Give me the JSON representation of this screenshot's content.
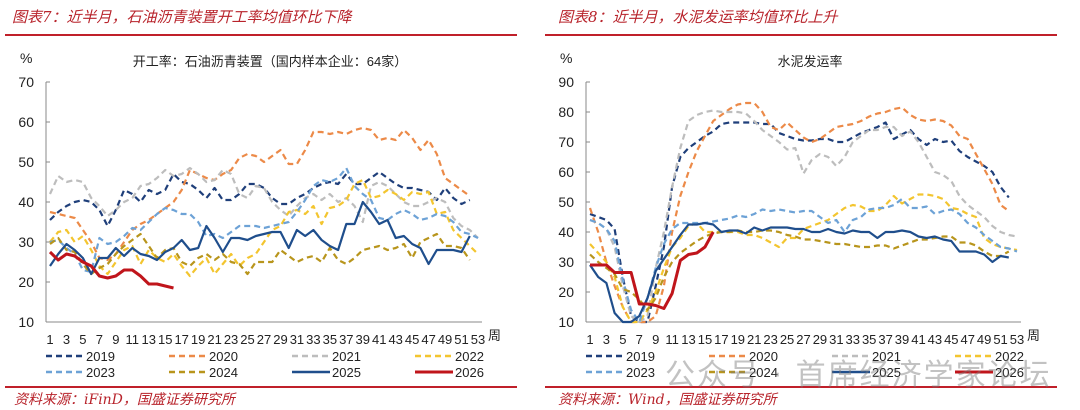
{
  "panels": [
    {
      "figure_title": "图表7：近半月，石油沥青装置开工率均值环比下降",
      "source": "资料来源：iFinD，国盛证券研究所"
    },
    {
      "figure_title": "图表8：近半月，水泥发运率均值环比上升",
      "source": "资料来源：Wind，国盛证券研究所"
    }
  ],
  "watermark": "公众号 · 首席经济学家论坛",
  "colors": {
    "accent": "#c0202a"
  },
  "chart_data": [
    {
      "type": "line",
      "title": "开工率：石油沥青装置（国内样本企业：64家）",
      "ylabel": "%",
      "xlabel": "周",
      "ylim": [
        10,
        70
      ],
      "yticks": [
        10,
        20,
        30,
        40,
        50,
        60,
        70
      ],
      "xlim": [
        1,
        53
      ],
      "xticks": [
        1,
        3,
        5,
        7,
        9,
        11,
        13,
        15,
        17,
        19,
        21,
        23,
        25,
        27,
        29,
        31,
        33,
        35,
        37,
        39,
        41,
        43,
        45,
        47,
        49,
        51,
        53
      ],
      "grid": false,
      "legend": "bottom",
      "series": [
        {
          "name": "2019",
          "color": "#1f3f7a",
          "dash": true,
          "values": [
            35.5,
            37.5,
            39,
            40,
            40.5,
            40,
            38,
            34,
            38,
            43,
            42,
            40,
            43,
            42,
            43,
            47,
            45,
            44.5,
            43,
            41,
            43.5,
            40.5,
            40.5,
            42,
            44.5,
            44.5,
            43.5,
            41,
            39.5,
            39.5,
            41,
            42,
            43.5,
            44.5,
            45,
            44.5,
            47,
            44.5,
            44.5,
            46,
            47.5,
            46,
            44.5,
            43.5,
            43.5,
            43,
            42.5,
            40.5,
            43.5,
            41,
            39.5,
            40.5
          ]
        },
        {
          "name": "2020",
          "color": "#ec8a48",
          "dash": true,
          "values": [
            37.5,
            37,
            36.5,
            36,
            33,
            30,
            26,
            25.5,
            27,
            30,
            33,
            34.5,
            35.5,
            37,
            38.5,
            40,
            43,
            48,
            47,
            46,
            45.5,
            47,
            48,
            51,
            52,
            51.5,
            50,
            51.5,
            53,
            49.5,
            49.5,
            53,
            57.5,
            57.5,
            57,
            57.5,
            57,
            58,
            58.5,
            58,
            55.5,
            56,
            55.5,
            58,
            56,
            53,
            55.5,
            52,
            46,
            44.5,
            43,
            41.5
          ]
        },
        {
          "name": "2021",
          "color": "#bdbdbd",
          "dash": true,
          "values": [
            42,
            46.5,
            45,
            45.5,
            45,
            41,
            39,
            36.5,
            38,
            40,
            41,
            44,
            44.5,
            46,
            48,
            46.5,
            47,
            48.5,
            47,
            45,
            45.5,
            48,
            47,
            42,
            41,
            44,
            43.5,
            40,
            38,
            36.5,
            39,
            41,
            42,
            40.5,
            42,
            40,
            41,
            39,
            35,
            44,
            45,
            44,
            42,
            40,
            39,
            39,
            40,
            41,
            40,
            36,
            34,
            33,
            31
          ]
        },
        {
          "name": "2022",
          "color": "#f3c52f",
          "dash": true,
          "values": [
            30,
            32.5,
            33,
            30,
            31.5,
            28,
            24,
            22,
            25,
            28,
            29,
            24.5,
            28,
            26,
            25,
            27,
            24,
            21.5,
            24,
            26,
            22,
            24.5,
            27,
            24,
            26,
            27,
            30,
            33,
            34,
            37.5,
            38,
            37,
            39,
            34.5,
            38.5,
            39,
            40.5,
            44.5,
            45.5,
            41,
            41.5,
            43,
            42,
            40.5,
            42.5,
            42,
            42.5,
            37,
            37.5,
            33,
            31,
            29,
            27
          ]
        },
        {
          "name": "2023",
          "color": "#6da2d6",
          "dash": true,
          "values": [
            30,
            30.5,
            28.5,
            27,
            23,
            22.5,
            31,
            29.5,
            30,
            31.5,
            33.5,
            33,
            35,
            37,
            38.5,
            38,
            37,
            37,
            35,
            31.5,
            32,
            31,
            32.5,
            34,
            34,
            34,
            33.5,
            34,
            34.5,
            35,
            37.5,
            40.5,
            44,
            45.5,
            45,
            46,
            48.5,
            44,
            42,
            40.5,
            36,
            35.5,
            37,
            38,
            37,
            35.5,
            36,
            37,
            36.5,
            35,
            32.5,
            32,
            31
          ]
        },
        {
          "name": "2024",
          "color": "#b8951c",
          "dash": true,
          "values": [
            29.5,
            31,
            28,
            27.5,
            24.5,
            22,
            23.5,
            24.5,
            27,
            29,
            30.5,
            32,
            29,
            26,
            28,
            28.5,
            25,
            24,
            26,
            27,
            25.5,
            27,
            25,
            24.5,
            22,
            25,
            25,
            25,
            28,
            26.5,
            25,
            26,
            26.5,
            25,
            28.5,
            25.5,
            24.5,
            26,
            28,
            28.5,
            29,
            28,
            28.5,
            29.5,
            26,
            30,
            31,
            32,
            29,
            29,
            28.5,
            25.5
          ]
        },
        {
          "name": "2025",
          "color": "#1f4e8c",
          "dash": false,
          "values": [
            24,
            27,
            29.5,
            28,
            26,
            22,
            26,
            26,
            28.5,
            26.5,
            28.5,
            27,
            26.5,
            25.5,
            27.5,
            28.5,
            30.5,
            28,
            28.5,
            34,
            31,
            27.5,
            31,
            31,
            30.5,
            31.5,
            32,
            32.5,
            32.5,
            28.5,
            33,
            31.5,
            33,
            30.5,
            29,
            28,
            34.5,
            34.5,
            40,
            37.5,
            34.5,
            35.5,
            31,
            31.5,
            29.5,
            28.5,
            24.5,
            28,
            28,
            28,
            27.5,
            31.5
          ]
        },
        {
          "name": "2026",
          "color": "#c0151b",
          "dash": false,
          "thick": true,
          "values": [
            27.5,
            25.5,
            27,
            26.5,
            25,
            24,
            21.5,
            21,
            21.5,
            23,
            23,
            21.5,
            19.5,
            19.5,
            19,
            18.5
          ]
        }
      ]
    },
    {
      "type": "line",
      "title": "水泥发运率",
      "ylabel": "%",
      "xlabel": "周",
      "ylim": [
        10,
        90
      ],
      "yticks": [
        10,
        20,
        30,
        40,
        50,
        60,
        70,
        80,
        90
      ],
      "xlim": [
        1,
        53
      ],
      "xticks": [
        1,
        3,
        5,
        7,
        9,
        11,
        13,
        15,
        17,
        19,
        21,
        23,
        25,
        27,
        29,
        31,
        33,
        35,
        37,
        39,
        41,
        43,
        45,
        47,
        49,
        51,
        53
      ],
      "grid": false,
      "legend": "bottom",
      "series": [
        {
          "name": "2019",
          "color": "#1f3f7a",
          "dash": true,
          "values": [
            46,
            45,
            44,
            41,
            25,
            12,
            10,
            10,
            22,
            35,
            55,
            65,
            68,
            70,
            72,
            73.5,
            76,
            76.5,
            76.5,
            76.5,
            76.5,
            76,
            76,
            73,
            72,
            71,
            70.5,
            70.5,
            71,
            71,
            70,
            70,
            71.5,
            73,
            74,
            75,
            76.5,
            71,
            72.5,
            74,
            71,
            69,
            71,
            70,
            70.5,
            67,
            65,
            63.5,
            62,
            60,
            55,
            51.5
          ]
        },
        {
          "name": "2020",
          "color": "#ec8a48",
          "dash": true,
          "values": [
            48,
            40,
            30,
            22,
            15,
            10,
            10,
            10,
            12,
            22,
            40,
            52,
            60,
            67,
            72,
            77,
            79,
            81,
            82.5,
            83,
            83,
            80,
            75,
            74,
            76.5,
            74,
            71.5,
            70,
            71,
            73,
            75,
            75.5,
            76,
            77,
            78.5,
            79.5,
            80,
            81,
            81.5,
            79,
            77.5,
            77,
            77.5,
            77,
            75.5,
            72,
            71,
            66,
            61,
            56,
            49,
            47
          ]
        },
        {
          "name": "2021",
          "color": "#bdbdbd",
          "dash": true,
          "values": [
            44,
            43,
            41,
            35,
            22,
            12,
            10,
            12,
            28,
            40,
            55,
            68,
            77,
            79,
            80,
            80.5,
            80,
            80,
            80,
            79.5,
            77,
            74,
            72,
            70,
            67.5,
            68,
            59.5,
            64,
            66,
            65,
            62,
            65,
            70,
            72,
            74,
            74,
            75,
            75,
            72,
            73.5,
            70,
            65,
            60,
            59,
            57,
            52,
            49,
            47,
            45,
            42,
            40,
            39,
            38.5
          ]
        },
        {
          "name": "2022",
          "color": "#f3c52f",
          "dash": true,
          "values": [
            36,
            33,
            30,
            25,
            15,
            10,
            10,
            14,
            20,
            28,
            35,
            38,
            42,
            43,
            40,
            40,
            40,
            40,
            40,
            39,
            39,
            38,
            36.5,
            35,
            38,
            38,
            41,
            42,
            43,
            44,
            46,
            48,
            49,
            48.5,
            47,
            47,
            49,
            52,
            49.5,
            51,
            52.5,
            52.5,
            52,
            51,
            48,
            47.5,
            46,
            45,
            38,
            36,
            35,
            34.5,
            34
          ]
        },
        {
          "name": "2023",
          "color": "#6da2d6",
          "dash": true,
          "values": [
            44,
            43,
            41,
            37,
            24,
            14,
            10,
            18,
            28,
            36,
            41,
            43,
            43,
            43,
            43,
            43.5,
            44,
            44.5,
            45.5,
            45,
            46,
            47.5,
            47,
            47.5,
            47,
            46.5,
            47,
            47,
            45,
            43,
            44,
            40,
            44,
            45,
            47.5,
            48,
            48,
            49,
            51,
            48,
            48,
            48.5,
            46,
            47,
            47.5,
            46,
            43,
            41.5,
            39,
            37,
            35,
            34.5,
            33.5
          ]
        },
        {
          "name": "2024",
          "color": "#b8951c",
          "dash": true,
          "values": [
            32.5,
            30,
            28,
            26,
            21,
            20,
            17.5,
            14,
            18,
            25,
            30,
            33,
            35,
            37,
            38.5,
            39.5,
            40,
            40,
            40.5,
            40,
            40,
            40.5,
            40.5,
            40,
            39,
            38.5,
            37.5,
            37.5,
            37,
            36.5,
            36,
            36,
            35.5,
            35,
            35,
            35.5,
            35.5,
            34.5,
            35.5,
            36.5,
            37.5,
            37.5,
            38,
            38.5,
            38.5,
            36.5,
            36.5,
            35.5,
            33.5,
            32,
            32,
            33.5
          ]
        },
        {
          "name": "2025",
          "color": "#1f4e8c",
          "dash": false,
          "values": [
            29,
            25,
            23,
            13,
            10,
            10,
            12,
            18,
            27,
            31,
            35,
            39,
            42.5,
            42.5,
            43,
            42.5,
            40,
            40.5,
            40.5,
            39.5,
            41.5,
            40.5,
            41.5,
            41.5,
            41.5,
            41,
            41,
            40,
            40,
            41,
            40,
            39.5,
            40.5,
            40,
            40,
            38,
            40,
            40,
            40.5,
            40,
            38.5,
            38,
            38.5,
            37.5,
            37,
            33.5,
            33.5,
            33.5,
            32.5,
            30,
            32,
            31.5
          ]
        },
        {
          "name": "2026",
          "color": "#c0151b",
          "dash": false,
          "thick": true,
          "values": [
            29,
            29,
            29,
            26.5,
            26.5,
            26.5,
            16,
            16,
            15.5,
            14.5,
            19.5,
            30.5,
            32.5,
            33,
            35,
            40
          ]
        }
      ]
    }
  ]
}
